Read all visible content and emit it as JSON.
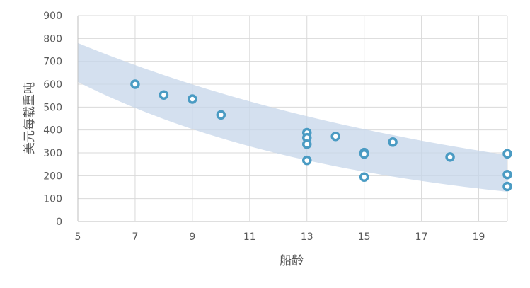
{
  "chart_data": {
    "type": "scatter",
    "title": "",
    "xlabel": "船龄",
    "ylabel": "美元每载重吨",
    "xlim": [
      5,
      20
    ],
    "ylim": [
      0,
      900
    ],
    "x_ticks": [
      5,
      7,
      9,
      11,
      13,
      15,
      17,
      19
    ],
    "y_ticks": [
      0,
      100,
      200,
      300,
      400,
      500,
      600,
      700,
      800,
      900
    ],
    "grid": true,
    "legend": "none",
    "points": [
      {
        "x": 7,
        "y": 600
      },
      {
        "x": 8,
        "y": 553
      },
      {
        "x": 9,
        "y": 535
      },
      {
        "x": 10,
        "y": 466
      },
      {
        "x": 13,
        "y": 388
      },
      {
        "x": 13,
        "y": 366
      },
      {
        "x": 13,
        "y": 338
      },
      {
        "x": 13,
        "y": 267
      },
      {
        "x": 14,
        "y": 372
      },
      {
        "x": 15,
        "y": 301
      },
      {
        "x": 15,
        "y": 295
      },
      {
        "x": 15,
        "y": 194
      },
      {
        "x": 16,
        "y": 347
      },
      {
        "x": 18,
        "y": 282
      },
      {
        "x": 20,
        "y": 296
      },
      {
        "x": 20,
        "y": 205
      },
      {
        "x": 20,
        "y": 153
      }
    ],
    "band": {
      "x": [
        5,
        20
      ],
      "upper": [
        780,
        290
      ],
      "lower": [
        610,
        130
      ]
    },
    "colors": {
      "marker": "#4a9bc3",
      "band": "#c5d5ea",
      "grid": "#d9d9d9",
      "text": "#595959"
    }
  }
}
